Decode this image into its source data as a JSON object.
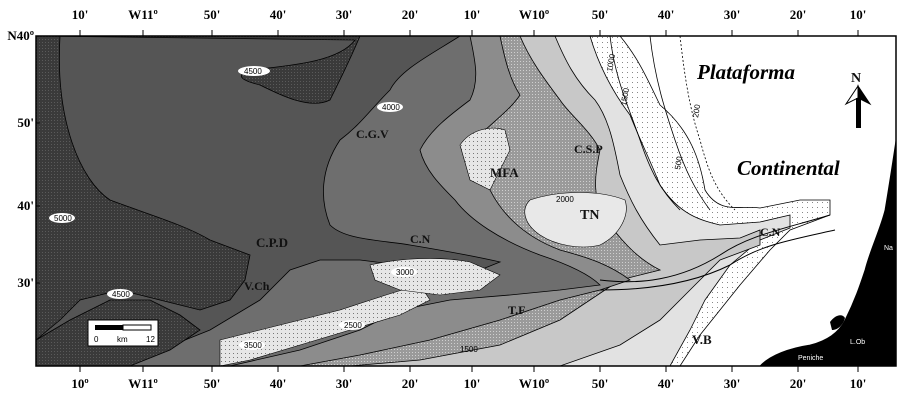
{
  "axes": {
    "top_ticks": [
      "10'",
      "W11º",
      "50'",
      "40'",
      "30'",
      "20'",
      "10'",
      "W10º",
      "50'",
      "40'",
      "30'",
      "20'",
      "10'"
    ],
    "bottom_ticks": [
      "10º",
      "W11º",
      "50'",
      "40'",
      "30'",
      "20'",
      "10'",
      "W10º",
      "50'",
      "40'",
      "30'",
      "20'",
      "10'"
    ],
    "left_ticks": [
      "N40º",
      "50'",
      "40'",
      "30'"
    ]
  },
  "regions": {
    "plataforma": "Plataforma",
    "continental": "Continental"
  },
  "north": "N",
  "features": {
    "cgv": "C.G.V",
    "mfa": "MFA",
    "csp": "C.S.P",
    "tn": "TN",
    "cpd": "C.P.D",
    "cn1": "C.N",
    "vch": "V.Ch",
    "tf": "T.F",
    "vb": "V.B",
    "cn2": "C.N"
  },
  "isobaths": {
    "i4500a": "4500",
    "i4000": "4000",
    "i5000": "5000",
    "i4500b": "4500",
    "i3000": "3000",
    "i2500": "2500",
    "i3500": "3500",
    "i1500a": "1500",
    "i1500b": "1500",
    "i2000": "2000",
    "i1000": "1000",
    "i500": "500",
    "i200": "200"
  },
  "places": {
    "na": "Na",
    "lob": "L.Ob",
    "peniche": "Peniche"
  },
  "scale": {
    "zero": "0",
    "unit": "km",
    "max": "12"
  },
  "colors": {
    "abyssal": "#3c3c3c",
    "deep": "#555555",
    "mid_deep": "#6e6e6e",
    "mid": "#8c8c8c",
    "slope": "#aaaaaa",
    "upper": "#c8c8c8",
    "shelf_edge": "#e2e2e2",
    "land": "#000000",
    "shelf": "#ffffff"
  }
}
